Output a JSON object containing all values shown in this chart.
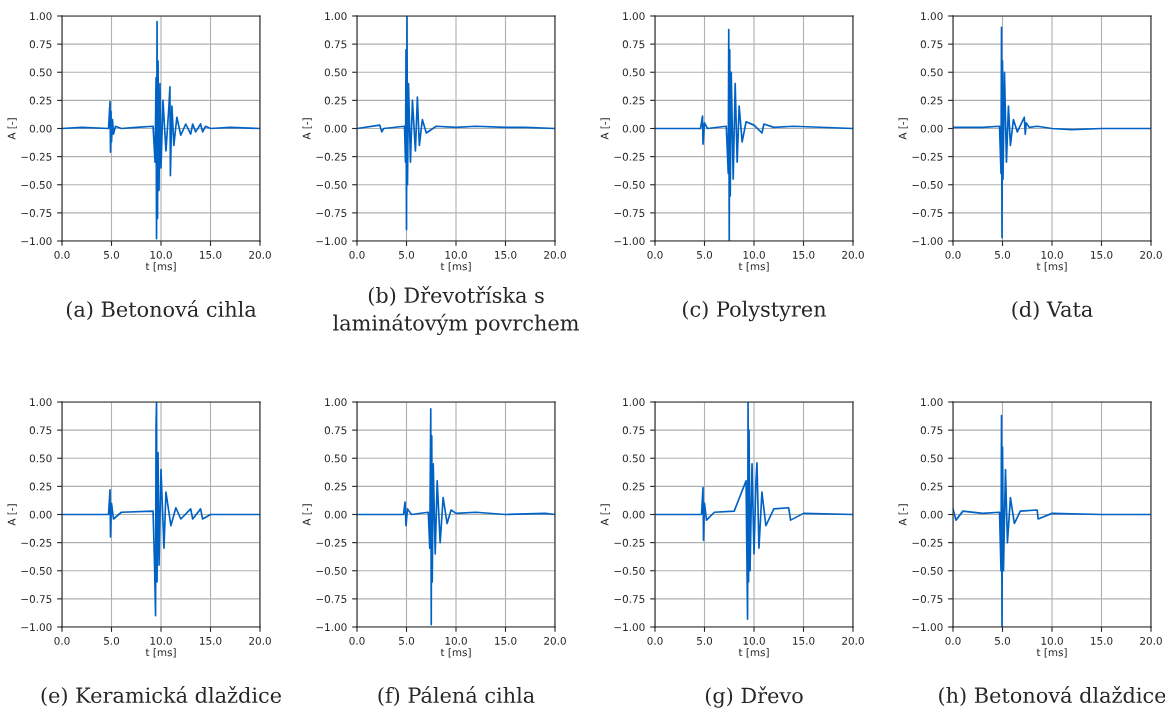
{
  "chart_data": [
    {
      "type": "line",
      "title": "(a) Betonová cihla",
      "xlabel": "t [ms]",
      "ylabel": "A [-]",
      "grid": true,
      "xlim": [
        0,
        20
      ],
      "ylim": [
        -1,
        1
      ],
      "xticks": [
        {
          "value": 0,
          "label": "0.0"
        },
        {
          "value": 5,
          "label": "5.0"
        },
        {
          "value": 10,
          "label": "10.0"
        },
        {
          "value": 15,
          "label": "15.0"
        },
        {
          "value": 20,
          "label": "20.0"
        }
      ],
      "yticks": [
        {
          "value": -1,
          "label": "−1.00"
        },
        {
          "value": -0.75,
          "label": "−0.75"
        },
        {
          "value": -0.5,
          "label": "−0.50"
        },
        {
          "value": -0.25,
          "label": "−0.25"
        },
        {
          "value": 0,
          "label": "0.00"
        },
        {
          "value": 0.25,
          "label": "0.25"
        },
        {
          "value": 0.5,
          "label": "0.50"
        },
        {
          "value": 0.75,
          "label": "0.75"
        },
        {
          "value": 1,
          "label": "1.00"
        }
      ],
      "series": [
        {
          "color": "#0062c4",
          "x": [
            0,
            2,
            4.7,
            4.85,
            4.9,
            4.95,
            5.0,
            5.1,
            5.2,
            5.4,
            6,
            7.5,
            9.2,
            9.4,
            9.5,
            9.55,
            9.6,
            9.65,
            9.7,
            9.8,
            9.9,
            10.0,
            10.2,
            10.5,
            10.8,
            10.9,
            10.95,
            11.1,
            11.3,
            11.6,
            12,
            12.5,
            13,
            13.2,
            13.5,
            14,
            14.2,
            14.5,
            15,
            17,
            20
          ],
          "values": [
            0,
            0.01,
            0,
            0.24,
            -0.21,
            0.15,
            -0.12,
            0.08,
            -0.05,
            0.02,
            0,
            0.01,
            0.02,
            -0.3,
            0.45,
            -0.98,
            0.95,
            -0.8,
            0.6,
            -0.55,
            0.4,
            -0.35,
            0.25,
            -0.2,
            0.2,
            0.37,
            -0.42,
            0.2,
            -0.15,
            0.1,
            -0.06,
            0.04,
            -0.05,
            0.04,
            -0.03,
            0.04,
            -0.03,
            0.02,
            0,
            0.01,
            0
          ]
        }
      ]
    },
    {
      "type": "line",
      "title": "(b) Dřevotříska s\nlaminátovým povrchem",
      "xlabel": "t [ms]",
      "ylabel": "A [-]",
      "grid": true,
      "xlim": [
        0,
        20
      ],
      "ylim": [
        -1,
        1
      ],
      "xticks": [
        {
          "value": 0,
          "label": "0.0"
        },
        {
          "value": 5,
          "label": "5.0"
        },
        {
          "value": 10,
          "label": "10.0"
        },
        {
          "value": 15,
          "label": "15.0"
        },
        {
          "value": 20,
          "label": "20.0"
        }
      ],
      "yticks": [
        {
          "value": -1,
          "label": "−1.00"
        },
        {
          "value": -0.75,
          "label": "−0.75"
        },
        {
          "value": -0.5,
          "label": "−0.50"
        },
        {
          "value": -0.25,
          "label": "−0.25"
        },
        {
          "value": 0,
          "label": "0.00"
        },
        {
          "value": 0.25,
          "label": "0.25"
        },
        {
          "value": 0.5,
          "label": "0.50"
        },
        {
          "value": 0.75,
          "label": "0.75"
        },
        {
          "value": 1,
          "label": "1.00"
        }
      ],
      "series": [
        {
          "color": "#0062c4",
          "x": [
            0,
            2.3,
            2.5,
            2.7,
            4.8,
            4.9,
            4.95,
            5.0,
            5.05,
            5.1,
            5.2,
            5.4,
            5.6,
            5.9,
            6.1,
            6.3,
            6.6,
            7,
            8,
            10,
            12,
            15,
            17,
            20
          ],
          "values": [
            0,
            0.03,
            -0.03,
            0,
            0.02,
            -0.3,
            0.7,
            -0.9,
            1.0,
            -0.5,
            0.4,
            -0.3,
            0.25,
            -0.2,
            0.28,
            -0.15,
            0.08,
            -0.04,
            0.02,
            0.01,
            0.02,
            0.01,
            0.01,
            0
          ]
        }
      ]
    },
    {
      "type": "line",
      "title": "(c) Polystyren",
      "xlabel": "t [ms]",
      "ylabel": "A [-]",
      "grid": true,
      "xlim": [
        0,
        20
      ],
      "ylim": [
        -1,
        1
      ],
      "xticks": [
        {
          "value": 0,
          "label": "0.0"
        },
        {
          "value": 5,
          "label": "5.0"
        },
        {
          "value": 10,
          "label": "10.0"
        },
        {
          "value": 15,
          "label": "15.0"
        },
        {
          "value": 20,
          "label": "20.0"
        }
      ],
      "yticks": [
        {
          "value": -1,
          "label": "−1.00"
        },
        {
          "value": -0.75,
          "label": "−0.75"
        },
        {
          "value": -0.5,
          "label": "−0.50"
        },
        {
          "value": -0.25,
          "label": "−0.25"
        },
        {
          "value": 0,
          "label": "0.00"
        },
        {
          "value": 0.25,
          "label": "0.25"
        },
        {
          "value": 0.5,
          "label": "0.50"
        },
        {
          "value": 0.75,
          "label": "0.75"
        },
        {
          "value": 1,
          "label": "1.00"
        }
      ],
      "series": [
        {
          "color": "#0062c4",
          "x": [
            0,
            4.6,
            4.8,
            4.85,
            5.0,
            5.3,
            7.2,
            7.4,
            7.45,
            7.5,
            7.55,
            7.6,
            7.7,
            7.9,
            8.1,
            8.3,
            8.5,
            8.8,
            9.2,
            10,
            10.8,
            11,
            12,
            14,
            20
          ],
          "values": [
            0,
            0,
            0.11,
            -0.14,
            0.05,
            0,
            0.02,
            -0.4,
            0.88,
            -1.0,
            0.7,
            -0.6,
            0.5,
            -0.45,
            0.4,
            -0.3,
            0.2,
            -0.12,
            0.06,
            0.03,
            -0.04,
            0.04,
            0.01,
            0.02,
            0
          ]
        }
      ]
    },
    {
      "type": "line",
      "title": "(d) Vata",
      "xlabel": "t [ms]",
      "ylabel": "A [-]",
      "grid": true,
      "xlim": [
        0,
        20
      ],
      "ylim": [
        -1,
        1
      ],
      "xticks": [
        {
          "value": 0,
          "label": "0.0"
        },
        {
          "value": 5,
          "label": "5.0"
        },
        {
          "value": 10,
          "label": "10.0"
        },
        {
          "value": 15,
          "label": "15.0"
        },
        {
          "value": 20,
          "label": "20.0"
        }
      ],
      "yticks": [
        {
          "value": -1,
          "label": "−1.00"
        },
        {
          "value": -0.75,
          "label": "−0.75"
        },
        {
          "value": -0.5,
          "label": "−0.50"
        },
        {
          "value": -0.25,
          "label": "−0.25"
        },
        {
          "value": 0,
          "label": "0.00"
        },
        {
          "value": 0.25,
          "label": "0.25"
        },
        {
          "value": 0.5,
          "label": "0.50"
        },
        {
          "value": 0.75,
          "label": "0.75"
        },
        {
          "value": 1,
          "label": "1.00"
        }
      ],
      "series": [
        {
          "color": "#0062c4",
          "x": [
            0,
            3,
            4.7,
            4.85,
            4.9,
            4.95,
            5.0,
            5.05,
            5.2,
            5.4,
            5.6,
            5.8,
            6.1,
            6.5,
            7.2,
            7.3,
            7.4,
            7.7,
            8.5,
            10,
            12,
            15,
            20
          ],
          "values": [
            0.01,
            0.01,
            0.02,
            -0.4,
            0.9,
            -0.97,
            0.6,
            -0.45,
            0.5,
            -0.3,
            0.2,
            -0.15,
            0.08,
            -0.03,
            0.1,
            -0.05,
            0.05,
            0.01,
            0.02,
            0,
            -0.01,
            0,
            0
          ]
        }
      ]
    },
    {
      "type": "line",
      "title": "(e) Keramická dlaždice",
      "xlabel": "t [ms]",
      "ylabel": "A [-]",
      "grid": true,
      "xlim": [
        0,
        20
      ],
      "ylim": [
        -1,
        1
      ],
      "xticks": [
        {
          "value": 0,
          "label": "0.0"
        },
        {
          "value": 5,
          "label": "5.0"
        },
        {
          "value": 10,
          "label": "10.0"
        },
        {
          "value": 15,
          "label": "15.0"
        },
        {
          "value": 20,
          "label": "20.0"
        }
      ],
      "yticks": [
        {
          "value": -1,
          "label": "−1.00"
        },
        {
          "value": -0.75,
          "label": "−0.75"
        },
        {
          "value": -0.5,
          "label": "−0.50"
        },
        {
          "value": -0.25,
          "label": "−0.25"
        },
        {
          "value": 0,
          "label": "0.00"
        },
        {
          "value": 0.25,
          "label": "0.25"
        },
        {
          "value": 0.5,
          "label": "0.50"
        },
        {
          "value": 0.75,
          "label": "0.75"
        },
        {
          "value": 1,
          "label": "1.00"
        }
      ],
      "series": [
        {
          "color": "#0062c4",
          "x": [
            0,
            4.7,
            4.85,
            4.9,
            5.0,
            5.2,
            6,
            9.2,
            9.35,
            9.45,
            9.5,
            9.55,
            9.6,
            9.7,
            9.8,
            10.0,
            10.3,
            10.5,
            11,
            11.5,
            12,
            13,
            13.2,
            14,
            14.2,
            15,
            20
          ],
          "values": [
            0,
            0,
            0.22,
            -0.2,
            0.1,
            -0.04,
            0.02,
            0.03,
            -0.45,
            -0.9,
            0.8,
            1.0,
            -0.6,
            0.55,
            -0.45,
            0.4,
            -0.3,
            0.2,
            -0.1,
            0.06,
            -0.04,
            0.05,
            -0.04,
            0.05,
            -0.04,
            0,
            0
          ]
        }
      ]
    },
    {
      "type": "line",
      "title": "(f) Pálená cihla",
      "xlabel": "t [ms]",
      "ylabel": "A [-]",
      "grid": true,
      "xlim": [
        0,
        20
      ],
      "ylim": [
        -1,
        1
      ],
      "xticks": [
        {
          "value": 0,
          "label": "0.0"
        },
        {
          "value": 5,
          "label": "5.0"
        },
        {
          "value": 10,
          "label": "10.0"
        },
        {
          "value": 15,
          "label": "15.0"
        },
        {
          "value": 20,
          "label": "20.0"
        }
      ],
      "yticks": [
        {
          "value": -1,
          "label": "−1.00"
        },
        {
          "value": -0.75,
          "label": "−0.75"
        },
        {
          "value": -0.5,
          "label": "−0.50"
        },
        {
          "value": -0.25,
          "label": "−0.25"
        },
        {
          "value": 0,
          "label": "0.00"
        },
        {
          "value": 0.25,
          "label": "0.25"
        },
        {
          "value": 0.5,
          "label": "0.50"
        },
        {
          "value": 0.75,
          "label": "0.75"
        },
        {
          "value": 1,
          "label": "1.00"
        }
      ],
      "series": [
        {
          "color": "#0062c4",
          "x": [
            0,
            4.7,
            4.85,
            4.95,
            5.1,
            5.5,
            7.2,
            7.35,
            7.45,
            7.5,
            7.55,
            7.6,
            7.7,
            7.9,
            8.1,
            8.4,
            8.7,
            9.1,
            9.5,
            10,
            12,
            15,
            19,
            20
          ],
          "values": [
            0,
            0,
            0.11,
            -0.1,
            0.05,
            0,
            0.02,
            -0.3,
            0.94,
            -0.98,
            0.7,
            -0.6,
            0.45,
            -0.35,
            0.3,
            -0.25,
            0.15,
            -0.08,
            0.04,
            0.01,
            0.02,
            0,
            0.01,
            0
          ]
        }
      ]
    },
    {
      "type": "line",
      "title": "(g) Dřevo",
      "xlabel": "t [ms]",
      "ylabel": "A [-]",
      "grid": true,
      "xlim": [
        0,
        20
      ],
      "ylim": [
        -1,
        1
      ],
      "xticks": [
        {
          "value": 0,
          "label": "0.0"
        },
        {
          "value": 5,
          "label": "5.0"
        },
        {
          "value": 10,
          "label": "10.0"
        },
        {
          "value": 15,
          "label": "15.0"
        },
        {
          "value": 20,
          "label": "20.0"
        }
      ],
      "yticks": [
        {
          "value": -1,
          "label": "−1.00"
        },
        {
          "value": -0.75,
          "label": "−0.75"
        },
        {
          "value": -0.5,
          "label": "−0.50"
        },
        {
          "value": -0.25,
          "label": "−0.25"
        },
        {
          "value": 0,
          "label": "0.00"
        },
        {
          "value": 0.25,
          "label": "0.25"
        },
        {
          "value": 0.5,
          "label": "0.50"
        },
        {
          "value": 0.75,
          "label": "0.75"
        },
        {
          "value": 1,
          "label": "1.00"
        }
      ],
      "series": [
        {
          "color": "#0062c4",
          "x": [
            0,
            4.7,
            4.85,
            4.9,
            5.0,
            5.2,
            6,
            8,
            9.2,
            9.35,
            9.4,
            9.45,
            9.5,
            9.6,
            9.8,
            10.0,
            10.2,
            10.3,
            10.5,
            10.8,
            11.2,
            12,
            13.5,
            13.7,
            15,
            20
          ],
          "values": [
            0,
            0,
            0.24,
            -0.23,
            0.1,
            -0.05,
            0.02,
            0.03,
            0.3,
            -0.93,
            1.0,
            -0.6,
            0.75,
            -0.5,
            0.45,
            -0.35,
            0.3,
            0.46,
            -0.3,
            0.2,
            -0.1,
            0.05,
            0.06,
            -0.05,
            0.01,
            0
          ]
        }
      ]
    },
    {
      "type": "line",
      "title": "(h) Betonová dlaždice",
      "xlabel": "t [ms]",
      "ylabel": "A [-]",
      "grid": true,
      "xlim": [
        0,
        20
      ],
      "ylim": [
        -1,
        1
      ],
      "xticks": [
        {
          "value": 0,
          "label": "0.0"
        },
        {
          "value": 5,
          "label": "5.0"
        },
        {
          "value": 10,
          "label": "10.0"
        },
        {
          "value": 15,
          "label": "15.0"
        },
        {
          "value": 20,
          "label": "20.0"
        }
      ],
      "yticks": [
        {
          "value": -1,
          "label": "−1.00"
        },
        {
          "value": -0.75,
          "label": "−0.75"
        },
        {
          "value": -0.5,
          "label": "−0.50"
        },
        {
          "value": -0.25,
          "label": "−0.25"
        },
        {
          "value": 0,
          "label": "0.00"
        },
        {
          "value": 0.25,
          "label": "0.25"
        },
        {
          "value": 0.5,
          "label": "0.50"
        },
        {
          "value": 0.75,
          "label": "0.75"
        },
        {
          "value": 1,
          "label": "1.00"
        }
      ],
      "series": [
        {
          "color": "#0062c4",
          "x": [
            0,
            0.3,
            1,
            3,
            4.7,
            4.85,
            4.9,
            4.95,
            5.0,
            5.1,
            5.3,
            5.5,
            5.8,
            6.2,
            6.8,
            8.5,
            8.6,
            10,
            15,
            20
          ],
          "values": [
            0.05,
            -0.05,
            0.03,
            0.01,
            0.02,
            -0.5,
            0.88,
            -1.0,
            0.6,
            -0.5,
            0.4,
            -0.25,
            0.15,
            -0.08,
            0.03,
            0.04,
            -0.04,
            0.01,
            0,
            0
          ]
        }
      ]
    }
  ]
}
